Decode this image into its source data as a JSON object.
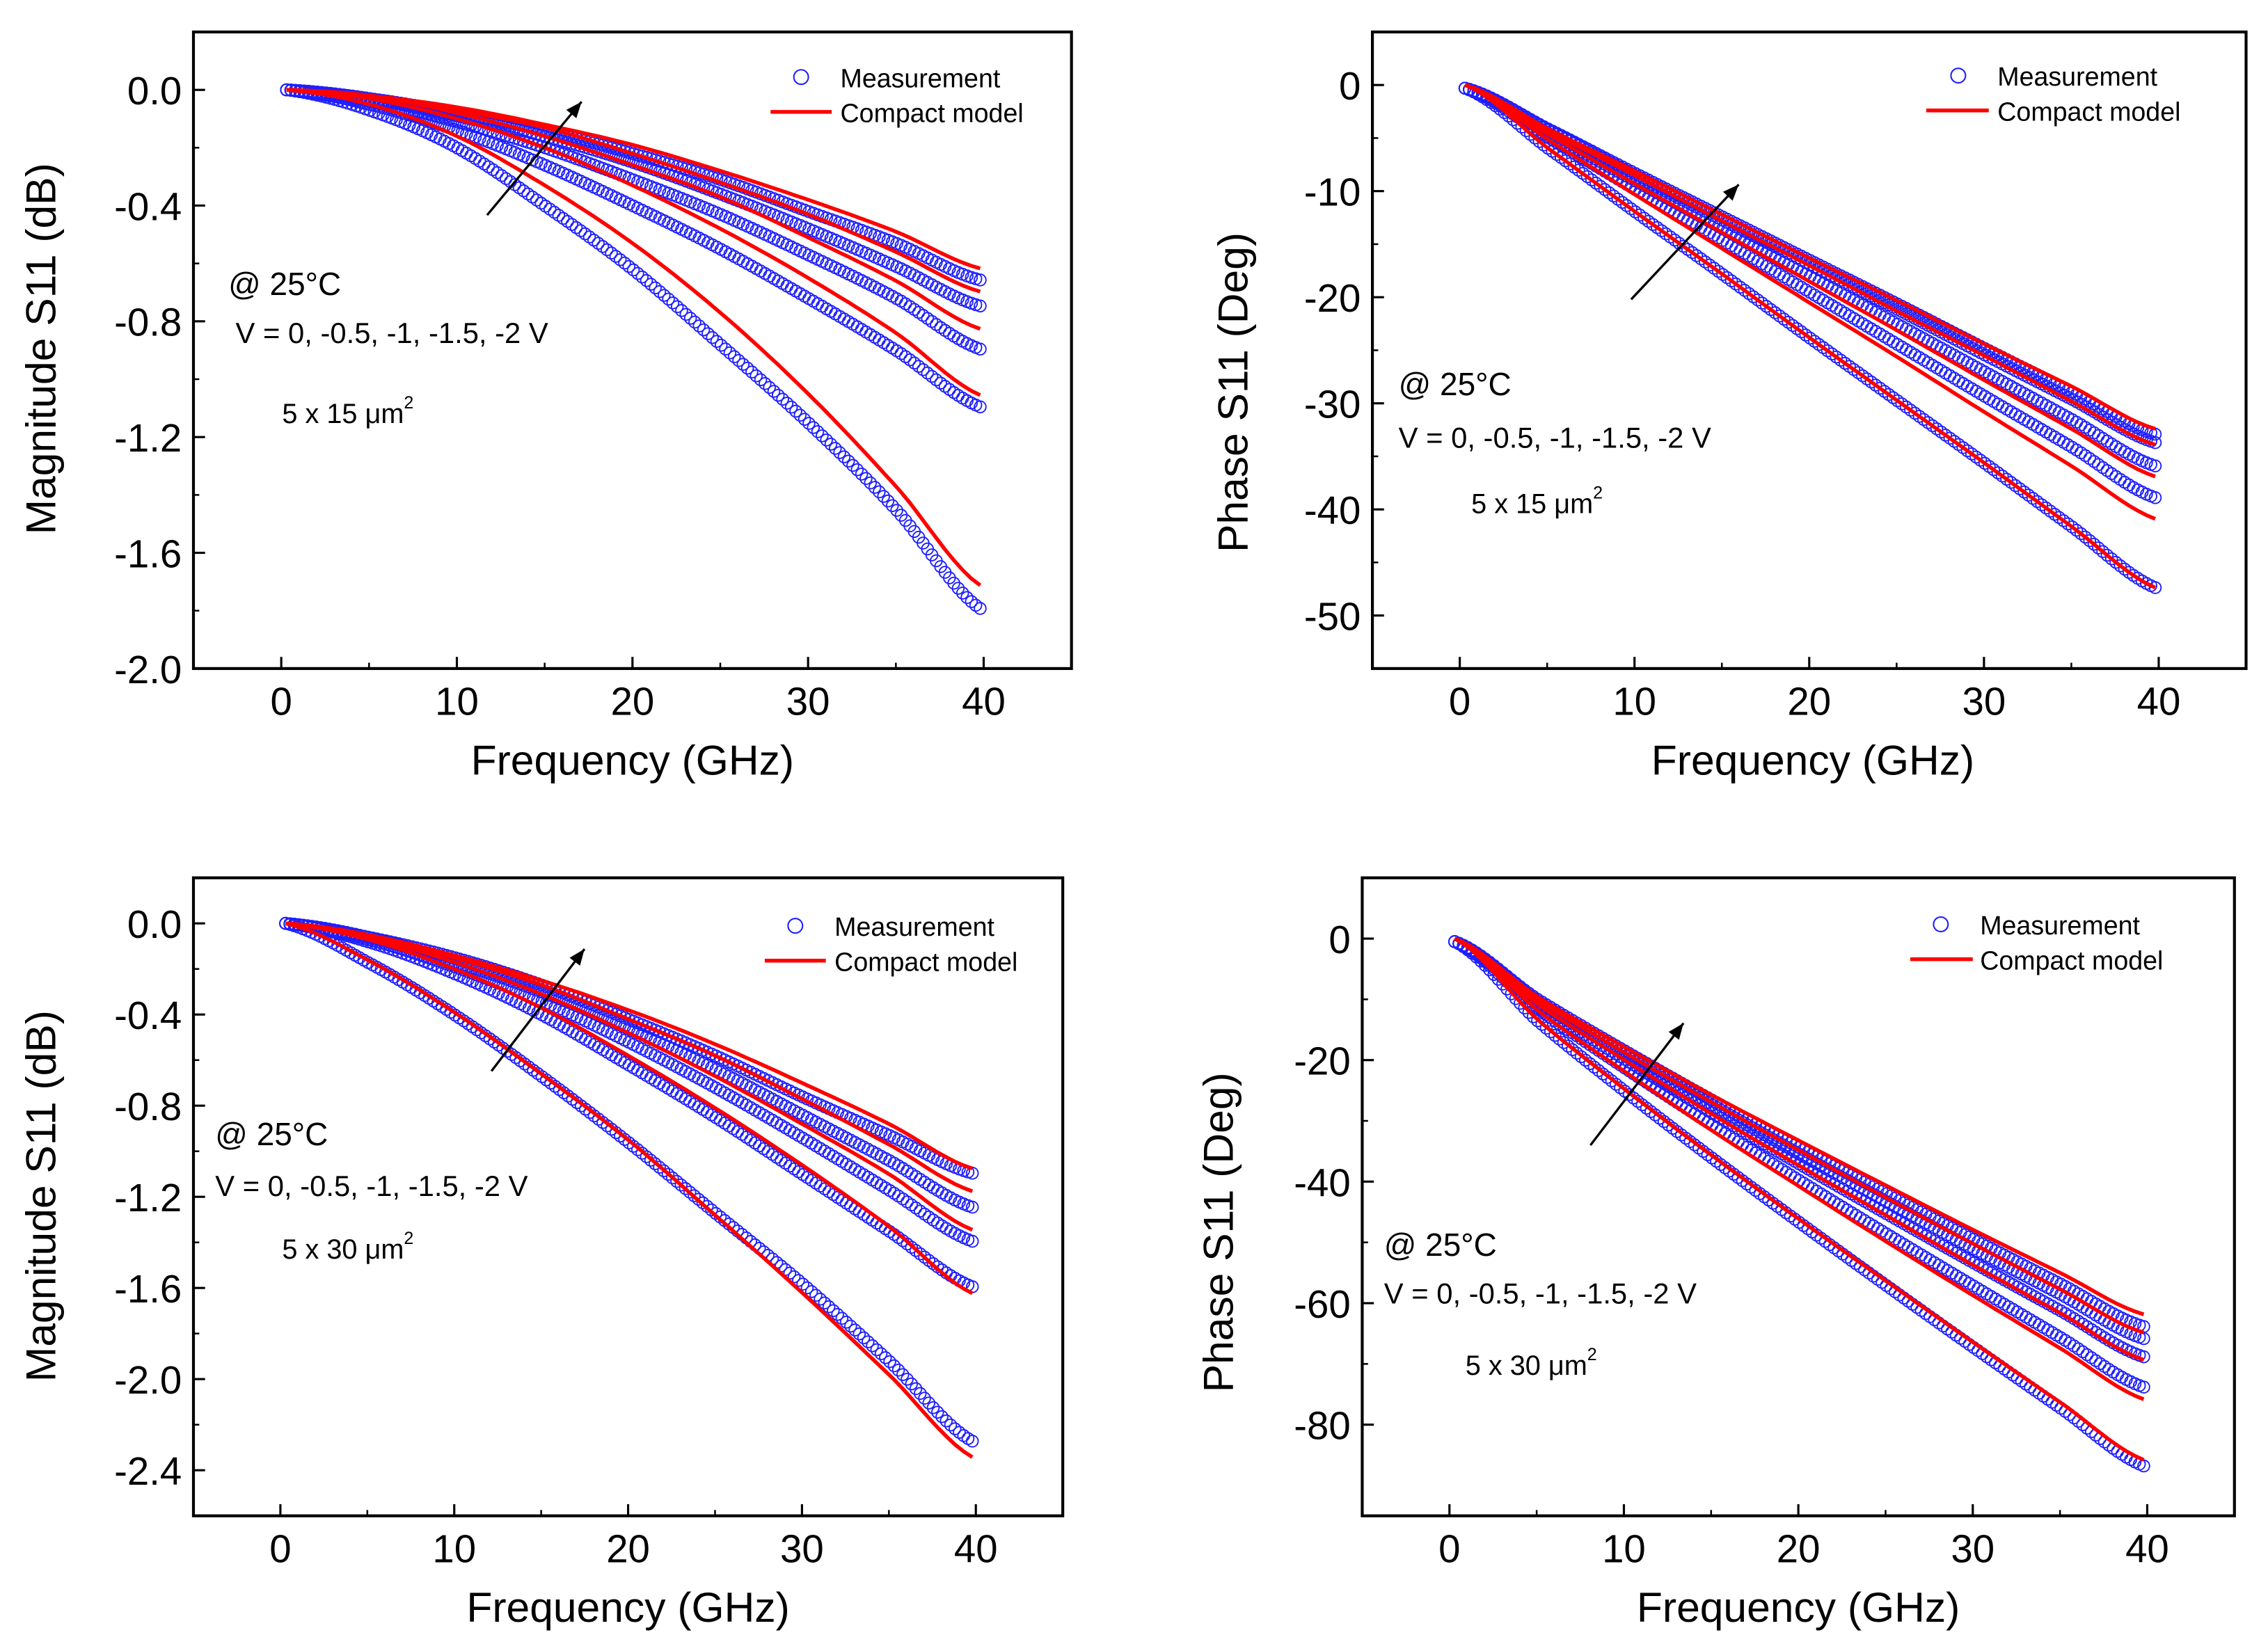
{
  "chart_data": [
    {
      "type": "scatter",
      "title": "",
      "xlabel": "Frequency (GHz)",
      "ylabel": "Magnitude S11 (dB)",
      "xlim": [
        -5,
        45
      ],
      "ylim": [
        -2.0,
        0.2
      ],
      "xticks": [
        0,
        10,
        20,
        30,
        40
      ],
      "yticks": [
        0.0,
        -0.4,
        -0.8,
        -1.2,
        -1.6,
        -2.0
      ],
      "ytick_labels": [
        "0.0",
        "-0.4",
        "-0.8",
        "-1.2",
        "-1.6",
        "-2.0"
      ],
      "legend": {
        "placement": "top-right",
        "entries": [
          "Measurement",
          "Compact model"
        ]
      },
      "annotations": {
        "temp": "@ 25°C",
        "voltages": "V = 0, -0.5, -1, -1.5, -2 V",
        "area": "5 x 15 μm",
        "area_sup": "2"
      },
      "x": [
        0.3,
        5,
        10,
        15,
        20,
        25,
        30,
        35,
        40
      ],
      "series": [
        {
          "name": "V = 0 V",
          "measurement": [
            0,
            -0.07,
            -0.2,
            -0.4,
            -0.62,
            -0.88,
            -1.15,
            -1.45,
            -1.8
          ],
          "model": [
            0,
            -0.05,
            -0.16,
            -0.33,
            -0.53,
            -0.77,
            -1.05,
            -1.37,
            -1.72
          ]
        },
        {
          "name": "V = -0.5 V",
          "measurement": [
            0,
            -0.05,
            -0.14,
            -0.26,
            -0.4,
            -0.55,
            -0.72,
            -0.9,
            -1.1
          ],
          "model": [
            0,
            -0.03,
            -0.1,
            -0.2,
            -0.33,
            -0.48,
            -0.65,
            -0.84,
            -1.06
          ]
        },
        {
          "name": "V = -1 V",
          "measurement": [
            0,
            -0.04,
            -0.11,
            -0.2,
            -0.31,
            -0.43,
            -0.57,
            -0.72,
            -0.9
          ],
          "model": [
            0,
            -0.02,
            -0.08,
            -0.16,
            -0.26,
            -0.37,
            -0.51,
            -0.66,
            -0.83
          ]
        },
        {
          "name": "V = -1.5 V",
          "measurement": [
            0,
            -0.03,
            -0.09,
            -0.16,
            -0.25,
            -0.36,
            -0.48,
            -0.61,
            -0.75
          ],
          "model": [
            0,
            -0.02,
            -0.07,
            -0.13,
            -0.22,
            -0.32,
            -0.43,
            -0.56,
            -0.7
          ]
        },
        {
          "name": "V = -2 V",
          "measurement": [
            0,
            -0.03,
            -0.08,
            -0.14,
            -0.22,
            -0.31,
            -0.42,
            -0.53,
            -0.66
          ],
          "model": [
            0,
            -0.02,
            -0.06,
            -0.12,
            -0.19,
            -0.28,
            -0.38,
            -0.49,
            -0.62
          ]
        }
      ]
    },
    {
      "type": "scatter",
      "title": "",
      "xlabel": "Frequency (GHz)",
      "ylabel": "Phase S11 (Deg)",
      "xlim": [
        -5,
        45
      ],
      "ylim": [
        -55,
        5
      ],
      "xticks": [
        0,
        10,
        20,
        30,
        40
      ],
      "yticks": [
        0,
        -10,
        -20,
        -30,
        -40,
        -50
      ],
      "ytick_labels": [
        "0",
        "-10",
        "-20",
        "-30",
        "-40",
        "-50"
      ],
      "legend": {
        "placement": "top-right",
        "entries": [
          "Measurement",
          "Compact model"
        ]
      },
      "annotations": {
        "temp": "@ 25°C",
        "voltages": "V = 0, -0.5, -1, -1.5, -2 V",
        "area": "5 x 15 μm",
        "area_sup": "2"
      },
      "x": [
        0.3,
        5,
        10,
        15,
        20,
        25,
        30,
        35,
        40
      ],
      "series": [
        {
          "name": "V = 0 V",
          "measurement": [
            -0.3,
            -5.9,
            -11.9,
            -17.8,
            -23.8,
            -29.7,
            -35.6,
            -41.6,
            -47.5
          ],
          "model": [
            0,
            -5.9,
            -11.9,
            -17.8,
            -23.8,
            -29.7,
            -35.6,
            -41.6,
            -47.5
          ]
        },
        {
          "name": "V = -0.5 V",
          "measurement": [
            -0.3,
            -4.9,
            -9.8,
            -14.6,
            -19.5,
            -24.4,
            -29.3,
            -34.1,
            -39.0
          ],
          "model": [
            0,
            -5.1,
            -10.3,
            -15.4,
            -20.5,
            -25.6,
            -30.8,
            -35.9,
            -41.0
          ]
        },
        {
          "name": "V = -1 V",
          "measurement": [
            -0.3,
            -4.5,
            -9.0,
            -13.5,
            -18.0,
            -22.5,
            -27.0,
            -31.5,
            -36.0
          ],
          "model": [
            0,
            -4.6,
            -9.3,
            -13.9,
            -18.5,
            -23.1,
            -27.8,
            -32.4,
            -37.0
          ]
        },
        {
          "name": "V = -1.5 V",
          "measurement": [
            -0.3,
            -4.2,
            -8.5,
            -12.7,
            -16.9,
            -21.1,
            -25.4,
            -29.6,
            -33.8
          ],
          "model": [
            0,
            -4.3,
            -8.5,
            -12.8,
            -17.0,
            -21.3,
            -25.5,
            -29.8,
            -34.0
          ]
        },
        {
          "name": "V = -2 V",
          "measurement": [
            -0.3,
            -4.1,
            -8.3,
            -12.4,
            -16.5,
            -20.6,
            -24.8,
            -28.9,
            -33.0
          ],
          "model": [
            0,
            -4.1,
            -8.1,
            -12.2,
            -16.3,
            -20.3,
            -24.4,
            -28.4,
            -32.5
          ]
        }
      ]
    },
    {
      "type": "scatter",
      "title": "",
      "xlabel": "Frequency (GHz)",
      "ylabel": "Magnitude S11 (dB)",
      "xlim": [
        -5,
        45
      ],
      "ylim": [
        -2.6,
        0.2
      ],
      "xticks": [
        0,
        10,
        20,
        30,
        40
      ],
      "yticks": [
        0.0,
        -0.4,
        -0.8,
        -1.2,
        -1.6,
        -2.0,
        -2.4
      ],
      "ytick_labels": [
        "0.0",
        "-0.4",
        "-0.8",
        "-1.2",
        "-1.6",
        "-2.0",
        "-2.4"
      ],
      "legend": {
        "placement": "top-right",
        "entries": [
          "Measurement",
          "Compact model"
        ]
      },
      "annotations": {
        "temp": "@ 25°C",
        "voltages": "V = 0, -0.5, -1, -1.5, -2 V",
        "area": "5 x 30 μm",
        "area_sup": "2"
      },
      "x": [
        0.3,
        5,
        10,
        15,
        20,
        25,
        30,
        35,
        40
      ],
      "series": [
        {
          "name": "V = 0 V",
          "measurement": [
            0,
            -0.17,
            -0.4,
            -0.67,
            -0.96,
            -1.27,
            -1.58,
            -1.92,
            -2.28
          ],
          "model": [
            0,
            -0.16,
            -0.39,
            -0.66,
            -0.95,
            -1.28,
            -1.62,
            -1.98,
            -2.35
          ]
        },
        {
          "name": "V = -0.5 V",
          "measurement": [
            0,
            -0.08,
            -0.22,
            -0.4,
            -0.62,
            -0.85,
            -1.1,
            -1.35,
            -1.6
          ],
          "model": [
            0,
            -0.07,
            -0.2,
            -0.37,
            -0.58,
            -0.81,
            -1.06,
            -1.33,
            -1.63
          ]
        },
        {
          "name": "V = -1 V",
          "measurement": [
            0,
            -0.07,
            -0.19,
            -0.34,
            -0.52,
            -0.72,
            -0.94,
            -1.17,
            -1.4
          ],
          "model": [
            0,
            -0.06,
            -0.17,
            -0.31,
            -0.48,
            -0.67,
            -0.88,
            -1.1,
            -1.35
          ]
        },
        {
          "name": "V = -1.5 V",
          "measurement": [
            0,
            -0.06,
            -0.17,
            -0.3,
            -0.46,
            -0.64,
            -0.84,
            -1.04,
            -1.25
          ],
          "model": [
            0,
            -0.05,
            -0.15,
            -0.27,
            -0.42,
            -0.58,
            -0.77,
            -0.97,
            -1.18
          ]
        },
        {
          "name": "V = -2 V",
          "measurement": [
            0,
            -0.06,
            -0.15,
            -0.27,
            -0.42,
            -0.58,
            -0.76,
            -0.93,
            -1.1
          ],
          "model": [
            0,
            -0.05,
            -0.14,
            -0.25,
            -0.38,
            -0.53,
            -0.7,
            -0.88,
            -1.08
          ]
        }
      ]
    },
    {
      "type": "scatter",
      "title": "",
      "xlabel": "Frequency (GHz)",
      "ylabel": "Phase S11 (Deg)",
      "xlim": [
        -5,
        45
      ],
      "ylim": [
        -95,
        10
      ],
      "xticks": [
        0,
        10,
        20,
        30,
        40
      ],
      "yticks": [
        0,
        -20,
        -40,
        -60,
        -80
      ],
      "ytick_labels": [
        "0",
        "-20",
        "-40",
        "-60",
        "-80"
      ],
      "legend": {
        "placement": "top-right",
        "entries": [
          "Measurement",
          "Compact model"
        ]
      },
      "annotations": {
        "temp": "@ 25°C",
        "voltages": "V = 0, -0.5, -1, -1.5, -2 V",
        "area": "5 x 30 μm",
        "area_sup": "2"
      },
      "x": [
        0.3,
        5,
        10,
        15,
        20,
        25,
        30,
        35,
        40
      ],
      "series": [
        {
          "name": "V = 0 V",
          "measurement": [
            -0.5,
            -13.4,
            -25.0,
            -36.0,
            -46.6,
            -57.0,
            -67.2,
            -77.2,
            -87.0
          ],
          "model": [
            0,
            -13.2,
            -24.7,
            -35.6,
            -46.1,
            -56.3,
            -66.4,
            -76.3,
            -86.0
          ]
        },
        {
          "name": "V = -0.5 V",
          "measurement": [
            -0.5,
            -11.4,
            -21.2,
            -30.6,
            -39.7,
            -48.5,
            -57.1,
            -65.6,
            -74.0
          ],
          "model": [
            0,
            -11.7,
            -21.8,
            -31.5,
            -40.7,
            -49.8,
            -58.7,
            -67.4,
            -76.0
          ]
        },
        {
          "name": "V = -1 V",
          "measurement": [
            -0.5,
            -10.6,
            -19.8,
            -28.6,
            -37.0,
            -45.2,
            -53.3,
            -61.2,
            -69.0
          ],
          "model": [
            0,
            -10.7,
            -19.9,
            -28.8,
            -37.3,
            -45.5,
            -53.7,
            -61.6,
            -69.5
          ]
        },
        {
          "name": "V = -1.5 V",
          "measurement": [
            -0.5,
            -10.2,
            -18.9,
            -27.3,
            -35.4,
            -43.2,
            -51.0,
            -58.5,
            -66.0
          ],
          "model": [
            0,
            -10.0,
            -18.7,
            -26.9,
            -34.8,
            -42.6,
            -50.2,
            -57.7,
            -65.0
          ]
        },
        {
          "name": "V = -2 V",
          "measurement": [
            -0.5,
            -9.9,
            -18.4,
            -26.5,
            -34.3,
            -41.9,
            -49.4,
            -56.8,
            -64.0
          ],
          "model": [
            0,
            -9.5,
            -17.8,
            -25.7,
            -33.2,
            -40.6,
            -47.9,
            -55.0,
            -62.0
          ]
        }
      ]
    }
  ],
  "colors": {
    "measurement": "#1f1fff",
    "model": "#ff0000",
    "axis": "#000000"
  }
}
